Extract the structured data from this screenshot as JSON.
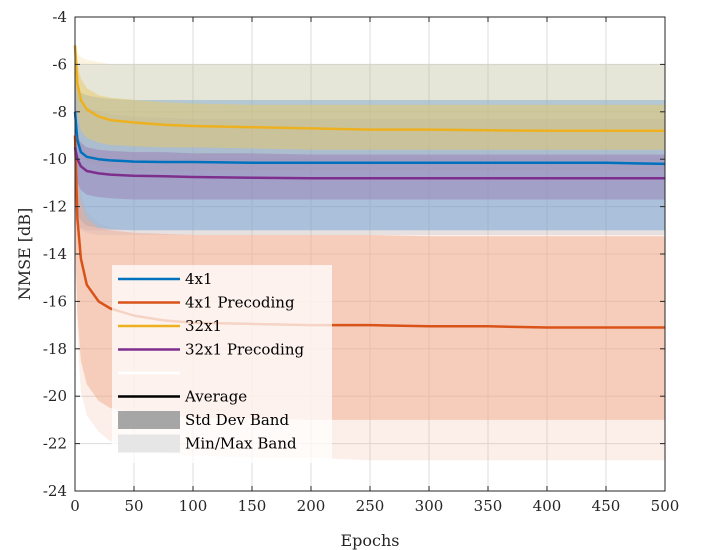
{
  "chart_data": {
    "type": "line",
    "title": "",
    "xlabel": "Epochs",
    "ylabel": "NMSE [dB]",
    "xlim": [
      0,
      500
    ],
    "ylim": [
      -24,
      -4
    ],
    "xticks": [
      "0",
      "50",
      "100",
      "150",
      "200",
      "250",
      "300",
      "350",
      "400",
      "450",
      "500"
    ],
    "yticks": [
      "-24",
      "-22",
      "-20",
      "-18",
      "-16",
      "-14",
      "-12",
      "-10",
      "-8",
      "-6",
      "-4"
    ],
    "grid": true,
    "legend_position": "bottom-left",
    "x": [
      0,
      2,
      5,
      10,
      20,
      30,
      50,
      75,
      100,
      150,
      200,
      250,
      300,
      350,
      400,
      450,
      500
    ],
    "series": [
      {
        "name": "4x1",
        "color": "#0072BD",
        "band_color": "#7FA9CE",
        "mean": [
          -8.0,
          -9.2,
          -9.7,
          -9.9,
          -10.0,
          -10.05,
          -10.1,
          -10.12,
          -10.12,
          -10.15,
          -10.15,
          -10.15,
          -10.15,
          -10.15,
          -10.15,
          -10.15,
          -10.2
        ],
        "std_low": [
          -11.5,
          -12.3,
          -12.6,
          -12.8,
          -12.9,
          -12.95,
          -13.0,
          -13.0,
          -13.0,
          -13.0,
          -13.0,
          -13.0,
          -13.0,
          -13.0,
          -13.0,
          -13.0,
          -13.0
        ],
        "std_high": [
          -6.5,
          -7.0,
          -7.2,
          -7.3,
          -7.4,
          -7.45,
          -7.5,
          -7.5,
          -7.5,
          -7.5,
          -7.5,
          -7.5,
          -7.5,
          -7.5,
          -7.5,
          -7.5,
          -7.5
        ],
        "min": [
          -12.0,
          -12.8,
          -13.0,
          -13.1,
          -13.2,
          -13.2,
          -13.2,
          -13.2,
          -13.2,
          -13.2,
          -13.2,
          -13.2,
          -13.2,
          -13.2,
          -13.2,
          -13.2,
          -13.2
        ],
        "max": [
          -6.0,
          -6.0,
          -6.0,
          -6.0,
          -6.0,
          -6.0,
          -6.0,
          -6.0,
          -6.0,
          -6.0,
          -6.0,
          -6.0,
          -6.0,
          -6.0,
          -6.0,
          -6.0,
          -6.0
        ]
      },
      {
        "name": "4x1 Precoding",
        "color": "#D95319",
        "band_color": "#F0AA8E",
        "mean": [
          -9.0,
          -12.5,
          -14.2,
          -15.3,
          -16.0,
          -16.3,
          -16.6,
          -16.8,
          -16.9,
          -16.95,
          -17.0,
          -17.0,
          -17.05,
          -17.05,
          -17.1,
          -17.1,
          -17.1
        ],
        "std_low": [
          -13.0,
          -16.5,
          -18.5,
          -19.5,
          -20.2,
          -20.5,
          -20.7,
          -20.8,
          -20.9,
          -20.95,
          -21.0,
          -21.0,
          -21.0,
          -21.0,
          -21.0,
          -21.0,
          -21.0
        ],
        "std_high": [
          -7.5,
          -10.5,
          -11.8,
          -12.5,
          -12.9,
          -13.0,
          -13.1,
          -13.15,
          -13.2,
          -13.2,
          -13.2,
          -13.2,
          -13.25,
          -13.25,
          -13.25,
          -13.25,
          -13.25
        ],
        "min": [
          -14.0,
          -17.5,
          -19.8,
          -20.8,
          -21.5,
          -21.9,
          -22.2,
          -22.4,
          -22.5,
          -22.6,
          -22.6,
          -22.7,
          -22.7,
          -22.7,
          -22.7,
          -22.7,
          -22.7
        ],
        "max": [
          -7.0,
          -10.0,
          -11.5,
          -12.2,
          -12.7,
          -12.9,
          -13.0,
          -13.0,
          -13.0,
          -13.0,
          -13.0,
          -13.0,
          -13.0,
          -13.0,
          -13.0,
          -13.0,
          -13.0
        ]
      },
      {
        "name": "32x1",
        "color": "#EDB120",
        "band_color": "#E9C766",
        "mean": [
          -5.2,
          -6.8,
          -7.5,
          -7.9,
          -8.2,
          -8.35,
          -8.45,
          -8.55,
          -8.6,
          -8.65,
          -8.7,
          -8.75,
          -8.75,
          -8.78,
          -8.8,
          -8.8,
          -8.8
        ],
        "std_low": [
          -6.5,
          -8.0,
          -8.8,
          -9.1,
          -9.3,
          -9.4,
          -9.45,
          -9.5,
          -9.5,
          -9.55,
          -9.6,
          -9.6,
          -9.6,
          -9.6,
          -9.6,
          -9.6,
          -9.6
        ],
        "std_high": [
          -5.0,
          -6.0,
          -6.6,
          -7.0,
          -7.3,
          -7.4,
          -7.5,
          -7.6,
          -7.65,
          -7.7,
          -7.7,
          -7.7,
          -7.7,
          -7.7,
          -7.7,
          -7.7,
          -7.7
        ],
        "min": [
          -7.0,
          -9.0,
          -9.8,
          -10.1,
          -10.3,
          -10.4,
          -10.5,
          -10.5,
          -10.5,
          -10.5,
          -10.5,
          -10.5,
          -10.5,
          -10.5,
          -10.5,
          -10.5,
          -10.5
        ],
        "max": [
          -5.0,
          -5.5,
          -5.7,
          -5.8,
          -5.9,
          -6.0,
          -6.0,
          -6.0,
          -6.0,
          -6.0,
          -6.0,
          -6.0,
          -6.0,
          -6.0,
          -6.0,
          -6.0,
          -6.0
        ]
      },
      {
        "name": "32x1 Precoding",
        "color": "#7E2F8E",
        "band_color": "#9C7FB3",
        "mean": [
          -9.5,
          -10.0,
          -10.3,
          -10.5,
          -10.6,
          -10.65,
          -10.7,
          -10.72,
          -10.75,
          -10.78,
          -10.8,
          -10.8,
          -10.8,
          -10.8,
          -10.8,
          -10.8,
          -10.8
        ],
        "std_low": [
          -10.5,
          -11.0,
          -11.3,
          -11.5,
          -11.6,
          -11.65,
          -11.7,
          -11.7,
          -11.7,
          -11.7,
          -11.7,
          -11.7,
          -11.7,
          -11.7,
          -11.7,
          -11.7,
          -11.7
        ],
        "std_high": [
          -8.5,
          -9.0,
          -9.3,
          -9.5,
          -9.6,
          -9.65,
          -9.7,
          -9.7,
          -9.75,
          -9.75,
          -9.8,
          -9.8,
          -9.8,
          -9.8,
          -9.8,
          -9.8,
          -9.8
        ],
        "min": [
          -12.5,
          -12.8,
          -12.9,
          -13.0,
          -13.0,
          -13.0,
          -13.0,
          -13.0,
          -13.0,
          -13.0,
          -13.0,
          -13.0,
          -13.0,
          -13.0,
          -13.0,
          -13.0,
          -13.0
        ],
        "max": [
          -6.5,
          -7.0,
          -7.5,
          -7.8,
          -8.0,
          -8.1,
          -8.2,
          -8.25,
          -8.3,
          -8.3,
          -8.3,
          -8.3,
          -8.3,
          -8.3,
          -8.3,
          -8.3,
          -8.3
        ]
      }
    ],
    "legend_extra": [
      {
        "name": "",
        "kind": "blank-line",
        "color": "#FFFFFF"
      },
      {
        "name": "Average",
        "kind": "line",
        "color": "#000000"
      },
      {
        "name": "Std Dev Band",
        "kind": "patch",
        "color": "#A6A6A6"
      },
      {
        "name": "Min/Max Band",
        "kind": "patch",
        "color": "#E6E6E6"
      }
    ]
  }
}
